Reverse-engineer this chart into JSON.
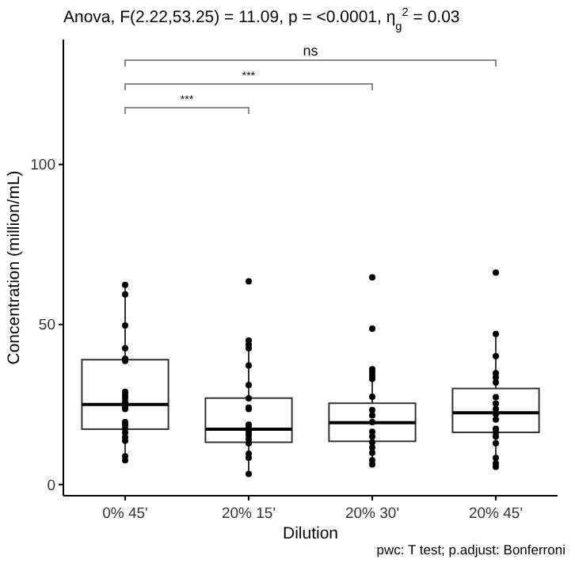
{
  "chart_data": {
    "type": "box",
    "title": "Anova, F(2.22,53.25) = 11.09, p = <0.0001, η$_{g}$$^{2}$ = 0.03",
    "xlabel": "Dilution",
    "ylabel": "Concentration (million/mL)",
    "categories": [
      "0% 45'",
      "20% 15'",
      "20% 30'",
      "20% 45'"
    ],
    "ylim": [
      -3.5,
      139
    ],
    "yticks": [
      0,
      50,
      100
    ],
    "grid": false,
    "boxes": [
      {
        "low": 7.6,
        "q1": 17.3,
        "median": 25,
        "q3": 39,
        "high": 62.4
      },
      {
        "low": 3.3,
        "q1": 13.2,
        "median": 17.3,
        "q3": 27,
        "high": 45
      },
      {
        "low": 6.3,
        "q1": 13.5,
        "median": 19.3,
        "q3": 25.4,
        "high": 36
      },
      {
        "low": 5.3,
        "q1": 16.3,
        "median": 22.4,
        "q3": 30,
        "high": 47
      }
    ],
    "series": [
      {
        "type": "scatter",
        "color": "#000000",
        "marker": "circle",
        "x": [
          "0% 45'",
          "0% 45'",
          "0% 45'",
          "0% 45'",
          "0% 45'",
          "0% 45'",
          "0% 45'",
          "0% 45'",
          "0% 45'",
          "0% 45'",
          "0% 45'",
          "0% 45'",
          "0% 45'",
          "0% 45'",
          "0% 45'",
          "0% 45'",
          "0% 45'",
          "0% 45'",
          "0% 45'",
          "0% 45'",
          "20% 15'",
          "20% 15'",
          "20% 15'",
          "20% 15'",
          "20% 15'",
          "20% 15'",
          "20% 15'",
          "20% 15'",
          "20% 15'",
          "20% 15'",
          "20% 15'",
          "20% 15'",
          "20% 15'",
          "20% 15'",
          "20% 15'",
          "20% 15'",
          "20% 15'",
          "20% 15'",
          "20% 30'",
          "20% 30'",
          "20% 30'",
          "20% 30'",
          "20% 30'",
          "20% 30'",
          "20% 30'",
          "20% 30'",
          "20% 30'",
          "20% 30'",
          "20% 30'",
          "20% 30'",
          "20% 30'",
          "20% 30'",
          "20% 30'",
          "20% 30'",
          "20% 30'",
          "20% 45'",
          "20% 45'",
          "20% 45'",
          "20% 45'",
          "20% 45'",
          "20% 45'",
          "20% 45'",
          "20% 45'",
          "20% 45'",
          "20% 45'",
          "20% 45'",
          "20% 45'",
          "20% 45'",
          "20% 45'",
          "20% 45'",
          "20% 45'",
          "20% 45'",
          "20% 45'"
        ],
        "values": [
          62.4,
          59.4,
          49.7,
          42.6,
          39.3,
          38.6,
          29,
          28,
          26.9,
          25.7,
          24.4,
          23.6,
          19.5,
          18.7,
          17.5,
          16.2,
          14.8,
          13.7,
          8.8,
          7.6,
          63.5,
          45,
          43.7,
          42.6,
          37.2,
          31.1,
          26.9,
          24,
          23.6,
          18.7,
          17.8,
          16.5,
          15.4,
          14.2,
          12.9,
          9.6,
          8.4,
          3.3,
          64.7,
          48.7,
          36,
          35.1,
          34,
          33,
          27.4,
          23.3,
          21.6,
          19.5,
          16.5,
          15,
          13.2,
          11.5,
          9.9,
          7.6,
          6.3,
          66.2,
          47,
          40.1,
          34.8,
          33.5,
          31.9,
          27.3,
          25.3,
          23.6,
          22,
          20.3,
          17.4,
          16.2,
          15,
          12.9,
          8.3,
          6.6,
          5.5
        ]
      }
    ],
    "annotations": [
      "***",
      "***",
      "ns",
      "pwc: T test; p.adjust: Bonferroni"
    ]
  }
}
